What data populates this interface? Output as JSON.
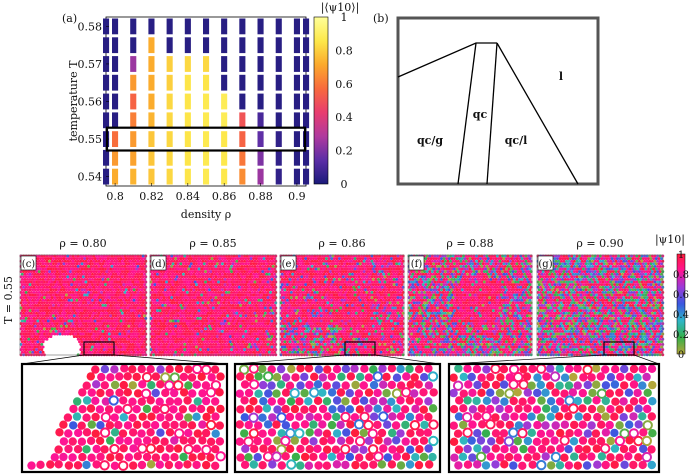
{
  "chart_data": [
    {
      "type": "heatmap",
      "panel_label": "(a)",
      "xlabel": "density ρ",
      "ylabel": "temperature T",
      "x_ticks": [
        "0.8",
        "0.82",
        "0.84",
        "0.86",
        "0.88",
        "0.9"
      ],
      "y_ticks": [
        "0.54",
        "0.55",
        "0.56",
        "0.57",
        "0.58"
      ],
      "x": [
        0.795,
        0.8,
        0.81,
        0.82,
        0.83,
        0.84,
        0.85,
        0.86,
        0.87,
        0.88,
        0.89,
        0.9,
        0.905
      ],
      "xlim": [
        0.795,
        0.905
      ],
      "ylim": [
        0.5375,
        0.5825
      ],
      "colorbar_label": "|⟨ψ10⟩|",
      "colorbar_ticks": [
        "0",
        "0.2",
        "0.4",
        "0.6",
        "0.8",
        "1"
      ],
      "highlight_row_T": 0.55,
      "colorscale": [
        "#1a1a7a",
        "#5b2ea6",
        "#b03a9e",
        "#e83d6f",
        "#f86a3d",
        "#fba92c",
        "#fde84a",
        "#ffff99"
      ],
      "rows": [
        {
          "T": 0.58,
          "values": [
            0.03,
            0.03,
            0.03,
            0.03,
            0.03,
            0.03,
            0.03,
            0.03,
            0.03,
            0.03,
            0.03,
            0.03,
            0.03
          ]
        },
        {
          "T": 0.575,
          "values": [
            0.03,
            0.03,
            0.03,
            0.72,
            0.03,
            0.03,
            0.03,
            0.03,
            0.03,
            0.03,
            0.03,
            0.03,
            0.03
          ]
        },
        {
          "T": 0.57,
          "values": [
            0.03,
            0.03,
            0.25,
            0.72,
            0.8,
            0.82,
            0.82,
            0.03,
            0.03,
            0.03,
            0.03,
            0.03,
            0.03
          ]
        },
        {
          "T": 0.565,
          "values": [
            0.03,
            0.03,
            0.68,
            0.72,
            0.8,
            0.85,
            0.85,
            0.03,
            0.03,
            0.03,
            0.03,
            0.03,
            0.03
          ]
        },
        {
          "T": 0.56,
          "values": [
            0.03,
            0.03,
            0.55,
            0.72,
            0.82,
            0.85,
            0.87,
            0.88,
            0.03,
            0.03,
            0.03,
            0.03,
            0.03
          ]
        },
        {
          "T": 0.555,
          "values": [
            0.03,
            0.03,
            0.62,
            0.74,
            0.82,
            0.85,
            0.87,
            0.88,
            0.5,
            0.1,
            0.03,
            0.03,
            0.03
          ]
        },
        {
          "T": 0.55,
          "values": [
            0.03,
            0.58,
            0.68,
            0.78,
            0.82,
            0.85,
            0.87,
            0.86,
            0.55,
            0.15,
            0.05,
            0.03,
            0.03
          ]
        },
        {
          "T": 0.545,
          "values": [
            0.03,
            0.68,
            0.7,
            0.78,
            0.82,
            0.85,
            0.87,
            0.86,
            0.6,
            0.2,
            0.05,
            0.03,
            0.03
          ]
        },
        {
          "T": 0.54,
          "values": [
            0.03,
            0.72,
            0.74,
            0.78,
            0.82,
            0.85,
            0.87,
            0.86,
            0.65,
            0.25,
            0.05,
            0.03,
            0.03
          ]
        }
      ]
    },
    {
      "type": "phase_diagram",
      "panel_label": "(b)",
      "regions": [
        "qc/g",
        "qc",
        "qc/l",
        "l"
      ]
    },
    {
      "type": "snapshots",
      "row_label": "T = 0.55",
      "panels": [
        {
          "label": "(c)",
          "title": "ρ = 0.80"
        },
        {
          "label": "(d)",
          "title": "ρ = 0.85"
        },
        {
          "label": "(e)",
          "title": "ρ = 0.86"
        },
        {
          "label": "(f)",
          "title": "ρ = 0.88"
        },
        {
          "label": "(g)",
          "title": "ρ = 0.90"
        }
      ],
      "colorbar_label": "|ψ10|",
      "colorbar_ticks": [
        "0",
        "0.2",
        "0.4",
        "0.6",
        "0.8",
        "1"
      ],
      "colorscale": [
        "#b5a63a",
        "#34b04a",
        "#2fb6c8",
        "#3a58e0",
        "#9b3bd8",
        "#ff1493",
        "#ff1c3c"
      ],
      "zoom_panels": [
        {
          "source": "(c)",
          "density": 0.8
        },
        {
          "source": "(e)",
          "density": 0.86
        },
        {
          "source": "(g)",
          "density": 0.9
        }
      ]
    }
  ]
}
